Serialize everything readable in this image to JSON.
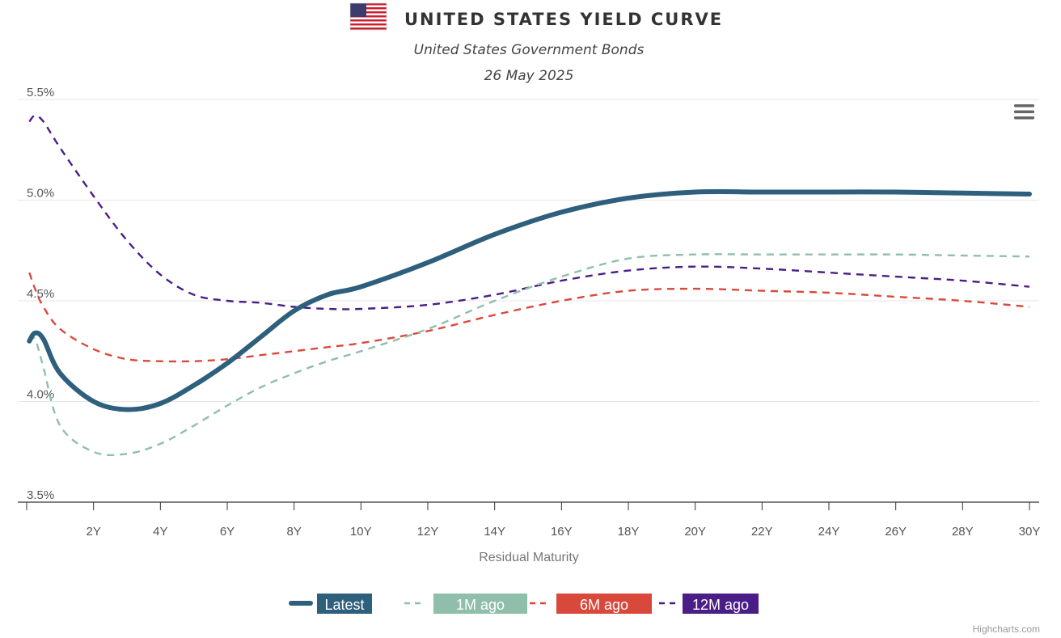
{
  "header": {
    "title": "UNITED STATES YIELD CURVE",
    "subtitle": "United States Government Bonds",
    "date": "26 May 2025",
    "flag_icon": "us-flag-icon"
  },
  "menu_icon": "hamburger-menu-icon",
  "credits": "Highcharts.com",
  "colors": {
    "latest": "#2e5f7d",
    "one_month": "#8fbfab",
    "six_month": "#d9493b",
    "twelve_month": "#4b1d87",
    "grid": "#e6e6e6",
    "axis": "#333333"
  },
  "chart_data": {
    "type": "line",
    "xlabel": "Residual Maturity",
    "ylabel": "",
    "xlim": [
      0,
      30
    ],
    "ylim": [
      3.5,
      5.5
    ],
    "x_ticks": [
      2,
      4,
      6,
      8,
      10,
      12,
      14,
      16,
      18,
      20,
      22,
      24,
      26,
      28,
      30
    ],
    "x_tick_labels": [
      "2Y",
      "4Y",
      "6Y",
      "8Y",
      "10Y",
      "12Y",
      "14Y",
      "16Y",
      "18Y",
      "20Y",
      "22Y",
      "24Y",
      "26Y",
      "28Y",
      "30Y"
    ],
    "y_ticks": [
      3.5,
      4.0,
      4.5,
      5.0,
      5.5
    ],
    "y_tick_labels": [
      "3.5%",
      "4.0%",
      "4.5%",
      "5.0%",
      "5.5%"
    ],
    "grid": true,
    "legend_position": "bottom",
    "series": [
      {
        "name": "Latest",
        "key": "latest",
        "dash": "solid",
        "points": [
          [
            0.08,
            4.3
          ],
          [
            0.25,
            4.34
          ],
          [
            0.5,
            4.31
          ],
          [
            1,
            4.14
          ],
          [
            2,
            4.0
          ],
          [
            3,
            3.96
          ],
          [
            4,
            3.99
          ],
          [
            5,
            4.08
          ],
          [
            6,
            4.19
          ],
          [
            7,
            4.32
          ],
          [
            8,
            4.45
          ],
          [
            9,
            4.53
          ],
          [
            10,
            4.57
          ],
          [
            12,
            4.69
          ],
          [
            14,
            4.83
          ],
          [
            16,
            4.94
          ],
          [
            18,
            5.01
          ],
          [
            20,
            5.04
          ],
          [
            22,
            5.04
          ],
          [
            24,
            5.04
          ],
          [
            26,
            5.04
          ],
          [
            28,
            5.035
          ],
          [
            30,
            5.03
          ]
        ]
      },
      {
        "name": "1M ago",
        "key": "one_month",
        "dash": "dash",
        "points": [
          [
            0.08,
            4.3
          ],
          [
            0.25,
            4.31
          ],
          [
            0.5,
            4.17
          ],
          [
            1,
            3.88
          ],
          [
            2,
            3.75
          ],
          [
            3,
            3.74
          ],
          [
            4,
            3.79
          ],
          [
            5,
            3.88
          ],
          [
            6,
            3.98
          ],
          [
            7,
            4.07
          ],
          [
            8,
            4.14
          ],
          [
            9,
            4.2
          ],
          [
            10,
            4.25
          ],
          [
            12,
            4.36
          ],
          [
            14,
            4.5
          ],
          [
            16,
            4.62
          ],
          [
            18,
            4.71
          ],
          [
            20,
            4.73
          ],
          [
            22,
            4.73
          ],
          [
            24,
            4.73
          ],
          [
            26,
            4.73
          ],
          [
            28,
            4.725
          ],
          [
            30,
            4.72
          ]
        ]
      },
      {
        "name": "6M ago",
        "key": "six_month",
        "dash": "dash",
        "points": [
          [
            0.08,
            4.64
          ],
          [
            0.25,
            4.56
          ],
          [
            0.5,
            4.47
          ],
          [
            1,
            4.36
          ],
          [
            2,
            4.26
          ],
          [
            3,
            4.21
          ],
          [
            4,
            4.2
          ],
          [
            5,
            4.2
          ],
          [
            6,
            4.21
          ],
          [
            7,
            4.23
          ],
          [
            8,
            4.25
          ],
          [
            9,
            4.27
          ],
          [
            10,
            4.29
          ],
          [
            12,
            4.35
          ],
          [
            14,
            4.43
          ],
          [
            16,
            4.5
          ],
          [
            18,
            4.55
          ],
          [
            20,
            4.56
          ],
          [
            22,
            4.55
          ],
          [
            24,
            4.54
          ],
          [
            26,
            4.52
          ],
          [
            28,
            4.5
          ],
          [
            30,
            4.47
          ]
        ]
      },
      {
        "name": "12M ago",
        "key": "twelve_month",
        "dash": "dash",
        "points": [
          [
            0.08,
            5.39
          ],
          [
            0.25,
            5.42
          ],
          [
            0.5,
            5.39
          ],
          [
            1,
            5.26
          ],
          [
            2,
            5.02
          ],
          [
            3,
            4.8
          ],
          [
            4,
            4.63
          ],
          [
            5,
            4.53
          ],
          [
            6,
            4.5
          ],
          [
            7,
            4.49
          ],
          [
            8,
            4.47
          ],
          [
            9,
            4.46
          ],
          [
            10,
            4.46
          ],
          [
            12,
            4.48
          ],
          [
            14,
            4.53
          ],
          [
            16,
            4.6
          ],
          [
            18,
            4.65
          ],
          [
            20,
            4.67
          ],
          [
            22,
            4.66
          ],
          [
            24,
            4.64
          ],
          [
            26,
            4.62
          ],
          [
            28,
            4.6
          ],
          [
            30,
            4.57
          ]
        ]
      }
    ]
  }
}
